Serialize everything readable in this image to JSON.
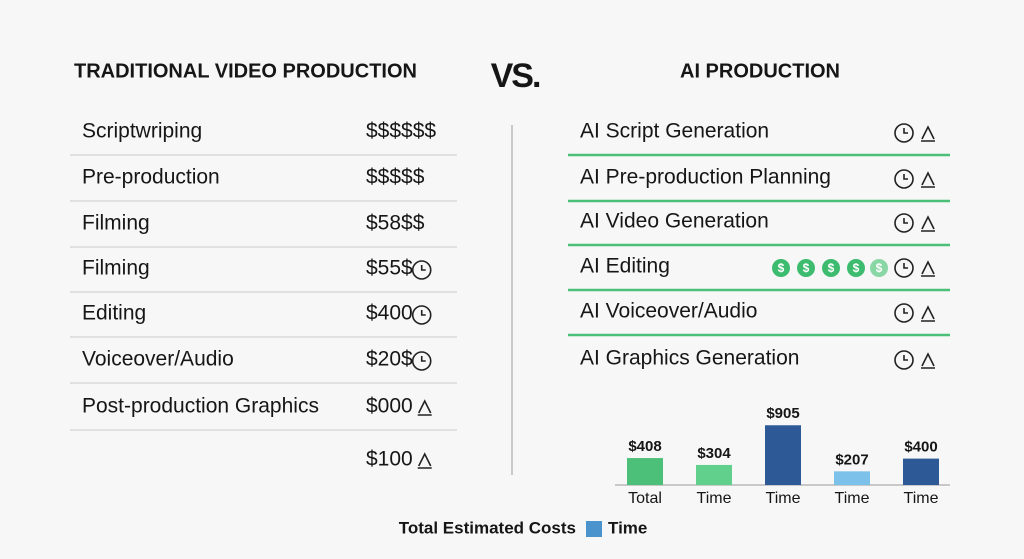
{
  "left": {
    "title": "TRADITIONAL VIDEO PRODUCTION",
    "rows": [
      {
        "label": "Scriptwriping",
        "cost": "$$$$$$"
      },
      {
        "label": "Pre-production",
        "cost": "$$$$$"
      },
      {
        "label": "Filming",
        "cost": "$58$$"
      },
      {
        "label": "Filming",
        "cost": "$55$"
      },
      {
        "label": "Editing",
        "cost": "$400"
      },
      {
        "label": "Voiceover/Audio",
        "cost": "$20$"
      },
      {
        "label": "Post-production Graphics",
        "cost": "$000"
      },
      {
        "cost": "$100"
      }
    ]
  },
  "versus": "VS.",
  "right": {
    "title": "AI PRODUCTION",
    "rows": [
      "AI Script Generation",
      "AI Pre-production Planning",
      "AI Video Generation",
      "AI Editing",
      "AI Voiceover/Audio",
      "AI Graphics Generation"
    ]
  },
  "chart_data": {
    "type": "bar",
    "categories": [
      "Total",
      "Time",
      "Time",
      "Time",
      "Time"
    ],
    "values": [
      408,
      304,
      905,
      207,
      400
    ],
    "value_labels": [
      "$408",
      "$304",
      "$905",
      "$207",
      "$400"
    ],
    "colors": [
      "#4cbf78",
      "#62d08d",
      "#2d5a97",
      "#7cc1ea",
      "#2d5a97"
    ],
    "ylim": [
      0,
      1000
    ],
    "legend": {
      "title": "Total Estimated Costs",
      "items": [
        {
          "name": "Time",
          "color": "#4a93cc"
        }
      ]
    }
  }
}
